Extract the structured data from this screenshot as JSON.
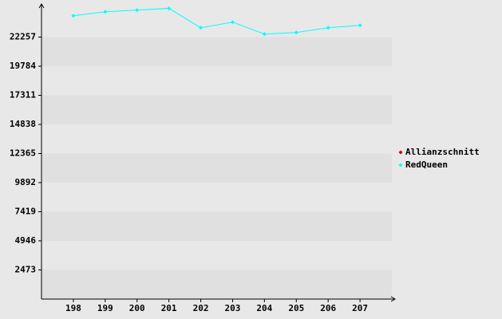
{
  "chart_data": {
    "type": "line",
    "categories": [
      "198",
      "199",
      "200",
      "201",
      "202",
      "203",
      "204",
      "205",
      "206",
      "207"
    ],
    "series": [
      {
        "name": "Allianzschnitt",
        "color": "#cc0000",
        "values": [
          null,
          null,
          null,
          null,
          null,
          null,
          null,
          null,
          null,
          null
        ]
      },
      {
        "name": "RedQueen",
        "color": "#00ffff",
        "values": [
          24070,
          24410,
          24550,
          24700,
          23050,
          23530,
          22510,
          22650,
          23050,
          23260
        ]
      }
    ],
    "ylim": [
      0,
      24730
    ],
    "yticks": [
      2473,
      4946,
      7419,
      9892,
      12365,
      14838,
      17311,
      19784,
      22257
    ],
    "grid": true,
    "legend": "right"
  }
}
